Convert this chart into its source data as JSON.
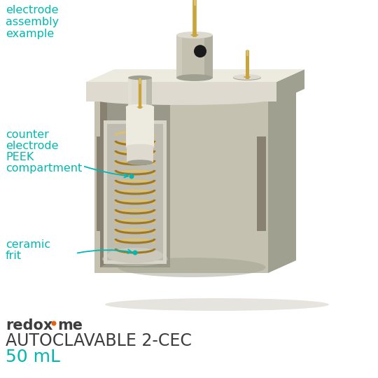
{
  "bg_color": "#ffffff",
  "teal_color": "#00b8b0",
  "dark_text": "#3d3d3d",
  "gold_color": "#c8a43a",
  "gold_light": "#dfc06a",
  "gold_dark": "#a07820",
  "body_color": "#c5c1b0",
  "body_shadow": "#a0a090",
  "body_light": "#dedad0",
  "body_lighter": "#edeae0",
  "inner_wall": "#9a9888",
  "inner_floor": "#b0ae9e",
  "red_dot": "#e86010",
  "black_hole": "#1a1a1a",
  "labels": {
    "top_left": [
      "electrode",
      "assembly",
      "example"
    ],
    "counter": [
      "counter",
      "electrode",
      "PEEK",
      "compartment"
    ],
    "frit": [
      "ceramic",
      "frit"
    ],
    "product": "AUTOCLAVABLE 2-CEC",
    "volume": "50 mL"
  },
  "figsize": [
    5.4,
    5.4
  ],
  "dpi": 100
}
